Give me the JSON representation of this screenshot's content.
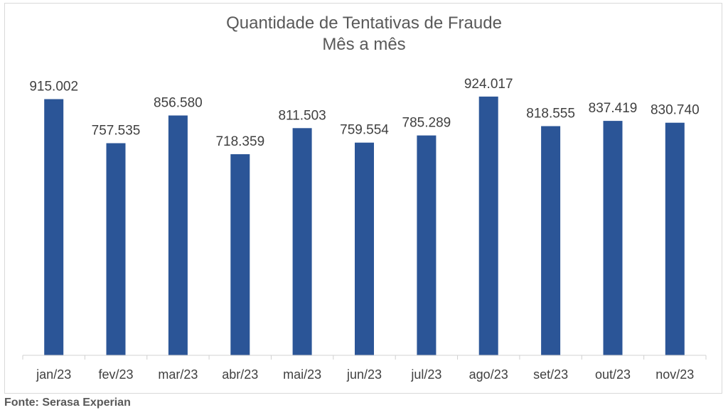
{
  "chart_data": {
    "type": "bar",
    "title": "Quantidade de Tentativas de Fraude",
    "subtitle": "Mês a mês",
    "categories": [
      "jan/23",
      "fev/23",
      "mar/23",
      "abr/23",
      "mai/23",
      "jun/23",
      "jul/23",
      "ago/23",
      "set/23",
      "out/23",
      "nov/23"
    ],
    "values": [
      915002,
      757535,
      856580,
      718359,
      811503,
      759554,
      785289,
      924017,
      818555,
      837419,
      830740
    ],
    "value_labels": [
      "915.002",
      "757.535",
      "856.580",
      "718.359",
      "811.503",
      "759.554",
      "785.289",
      "924.017",
      "818.555",
      "837.419",
      "830.740"
    ],
    "xlabel": "",
    "ylabel": "",
    "ylim": [
      0,
      1000000
    ],
    "grid": false,
    "legend": "none",
    "bar_color": "#2b5597"
  },
  "source": "Fonte: Serasa Experian"
}
